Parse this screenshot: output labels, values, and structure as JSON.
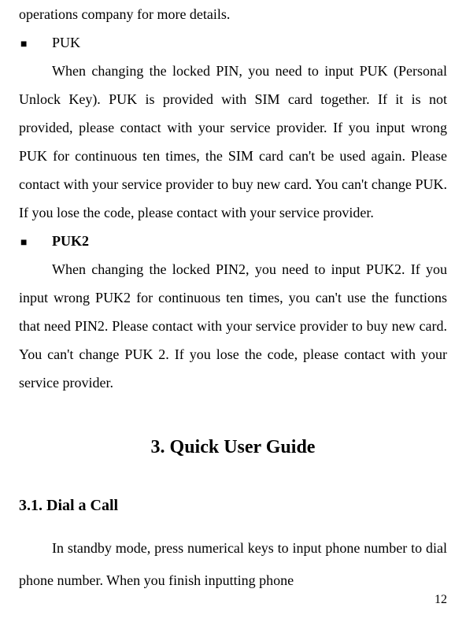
{
  "top_line": "operations company for more details.",
  "bullet_mark": "■",
  "puk": {
    "label": "PUK",
    "text": "When changing the locked PIN, you need to input PUK (Personal Unlock Key). PUK is provided with SIM card together. If it is not provided, please contact with your service provider. If you input wrong PUK for continuous ten times, the SIM card can't be used again. Please contact with your service provider to buy new card. You can't change PUK. If you lose the code, please contact with your service provider."
  },
  "puk2": {
    "label": "PUK2",
    "text": "When changing the locked PIN2, you need to input PUK2. If you input wrong PUK2 for continuous ten times, you can't use the functions that need PIN2. Please contact with your service provider to buy new card. You can't change PUK 2. If you lose the code, please contact with your service provider."
  },
  "chapter": "3.   Quick User Guide",
  "section": "3.1.   Dial a Call",
  "section_text": "In standby mode, press numerical keys to input phone number to dial phone number. When you finish inputting phone",
  "page_number": "12"
}
